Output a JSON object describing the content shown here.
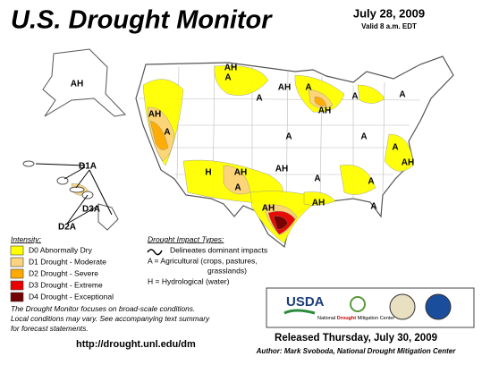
{
  "header": {
    "title": "U.S. Drought Monitor",
    "date": "July 28, 2009",
    "valid": "Valid 8 a.m. EDT"
  },
  "map": {
    "labels": [
      "AH",
      "AH",
      "A",
      "AH",
      "A",
      "A",
      "AH",
      "A",
      "A",
      "AH",
      "A",
      "A",
      "A",
      "A",
      "AH",
      "H",
      "AH",
      "AH",
      "A",
      "A",
      "A",
      "AH",
      "AH",
      "A",
      "D1A",
      "D3A",
      "D2A"
    ]
  },
  "legend": {
    "title": "Intensity:",
    "items": [
      {
        "label": "D0 Abnormally Dry",
        "color": "#ffff00"
      },
      {
        "label": "D1 Drought - Moderate",
        "color": "#fcd37f"
      },
      {
        "label": "D2 Drought - Severe",
        "color": "#ffaa00"
      },
      {
        "label": "D3 Drought - Extreme",
        "color": "#e60000"
      },
      {
        "label": "D4 Drought - Exceptional",
        "color": "#730000"
      }
    ]
  },
  "impacts": {
    "title": "Drought Impact Types:",
    "items": [
      "Delineates dominant impacts",
      "A = Agricultural (crops, pastures,",
      "grasslands)",
      "H = Hydrological (water)"
    ]
  },
  "note": {
    "lines": [
      "The Drought Monitor focuses on broad-scale conditions.",
      "Local conditions may vary.  See accompanying text summary",
      "for forecast statements."
    ]
  },
  "logos": {
    "usda": "USDA",
    "ndmc": [
      "National",
      "Drought",
      "Mitigation Center"
    ]
  },
  "footer": {
    "url": "http://drought.unl.edu/dm",
    "released": "Released Thursday, July 30, 2009",
    "author": "Author: Mark Svoboda, National Drought Mitigation Center"
  }
}
